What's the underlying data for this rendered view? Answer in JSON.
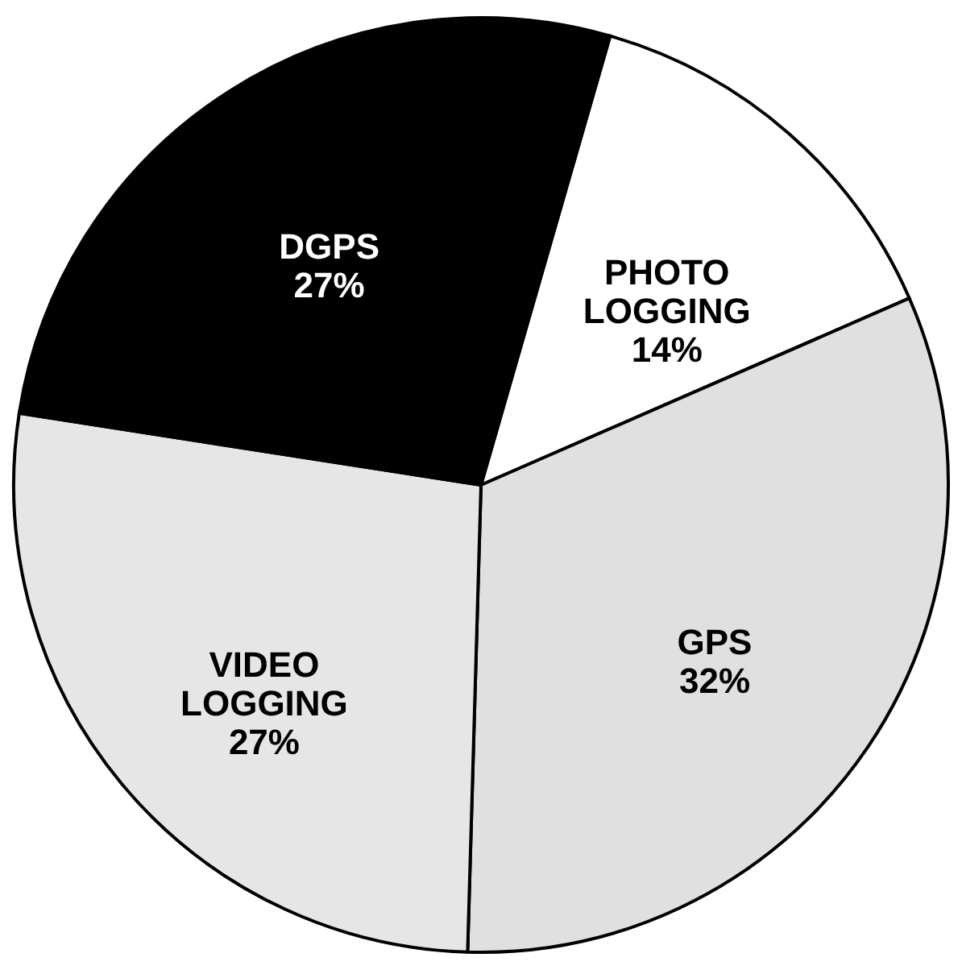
{
  "chart_data": {
    "type": "pie",
    "categories": [
      "PHOTO LOGGING",
      "GPS",
      "VIDEO LOGGING",
      "DGPS"
    ],
    "values": [
      14,
      32,
      27,
      27
    ],
    "value_labels": [
      "14%",
      "32%",
      "27%",
      "27%"
    ],
    "colors": [
      "#ffffff",
      "#e0e0e0",
      "#e6e6e6",
      "#000000"
    ]
  }
}
